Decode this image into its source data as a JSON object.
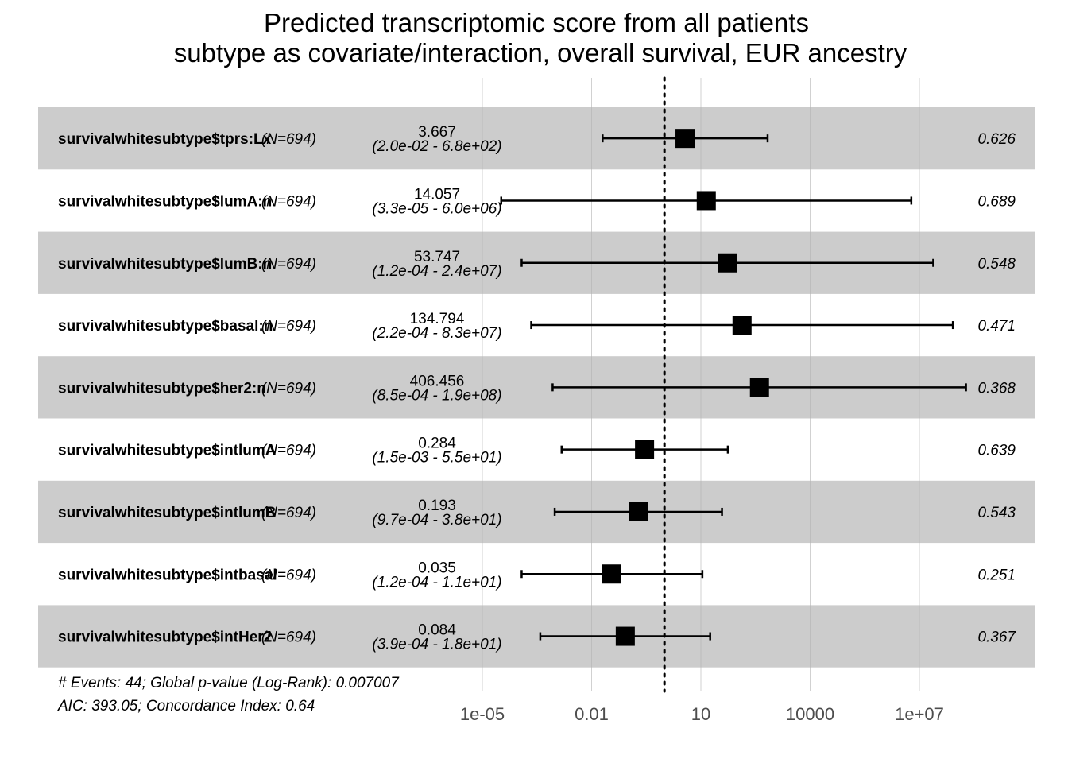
{
  "chart_data": {
    "type": "forest",
    "title": [
      "Predicted transcriptomic score from all patients",
      "subtype as covariate/interaction, overall survival, EUR ancestry"
    ],
    "x_scale": "log10",
    "xlim": [
      1e-06,
      100000000.0
    ],
    "reference_line": 1,
    "x_ticks": [
      1e-05,
      0.01,
      10,
      10000,
      10000000.0
    ],
    "x_tick_labels": [
      "1e-05",
      "0.01",
      "10",
      "10000",
      "1e+07"
    ],
    "rows": [
      {
        "variable": "survivalwhitesubtype$tprs:Lx",
        "n": "(N=694)",
        "hr": 3.667,
        "lower": 0.02,
        "upper": 680,
        "hr_label": "3.667",
        "ci_label": "(2.0e-02 - 6.8e+02)",
        "p": "0.626",
        "shaded": true
      },
      {
        "variable": "survivalwhitesubtype$lumA:n",
        "n": "(N=694)",
        "hr": 14.057,
        "lower": 3.3e-05,
        "upper": 6000000.0,
        "hr_label": "14.057",
        "ci_label": "(3.3e-05 - 6.0e+06)",
        "p": "0.689",
        "shaded": false
      },
      {
        "variable": "survivalwhitesubtype$lumB:n",
        "n": "(N=694)",
        "hr": 53.747,
        "lower": 0.00012,
        "upper": 24000000.0,
        "hr_label": "53.747",
        "ci_label": "(1.2e-04 - 2.4e+07)",
        "p": "0.548",
        "shaded": true
      },
      {
        "variable": "survivalwhitesubtype$basal:n",
        "n": "(N=694)",
        "hr": 134.794,
        "lower": 0.00022,
        "upper": 83000000.0,
        "hr_label": "134.794",
        "ci_label": "(2.2e-04 - 8.3e+07)",
        "p": "0.471",
        "shaded": false
      },
      {
        "variable": "survivalwhitesubtype$her2:n",
        "n": "(N=694)",
        "hr": 406.456,
        "lower": 0.00085,
        "upper": 190000000.0,
        "hr_label": "406.456",
        "ci_label": "(8.5e-04 - 1.9e+08)",
        "p": "0.368",
        "shaded": true
      },
      {
        "variable": "survivalwhitesubtype$intlumA",
        "n": "(N=694)",
        "hr": 0.284,
        "lower": 0.0015,
        "upper": 55,
        "hr_label": "0.284",
        "ci_label": "(1.5e-03 - 5.5e+01)",
        "p": "0.639",
        "shaded": false
      },
      {
        "variable": "survivalwhitesubtype$intlumB",
        "n": "(N=694)",
        "hr": 0.193,
        "lower": 0.00097,
        "upper": 38,
        "hr_label": "0.193",
        "ci_label": "(9.7e-04 - 3.8e+01)",
        "p": "0.543",
        "shaded": true
      },
      {
        "variable": "survivalwhitesubtype$intbasal",
        "n": "(N=694)",
        "hr": 0.035,
        "lower": 0.00012,
        "upper": 11,
        "hr_label": "0.035",
        "ci_label": "(1.2e-04 - 1.1e+01)",
        "p": "0.251",
        "shaded": false
      },
      {
        "variable": "survivalwhitesubtype$intHer2",
        "n": "(N=694)",
        "hr": 0.084,
        "lower": 0.00039,
        "upper": 18,
        "hr_label": "0.084",
        "ci_label": "(3.9e-04 - 1.8e+01)",
        "p": "0.367",
        "shaded": true
      }
    ],
    "footer": [
      "# Events: 44; Global p-value (Log-Rank): 0.007007",
      "AIC: 393.05; Concordance Index: 0.64"
    ],
    "colors": {
      "shade": "#cccccc",
      "gridline": "#b3b3b3",
      "marker": "#000000"
    }
  }
}
